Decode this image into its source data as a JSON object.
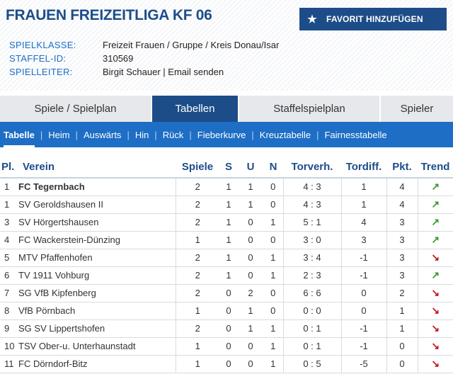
{
  "header": {
    "title": "FRAUEN FREIZEITLIGA KF 06",
    "favorite_label": "FAVORIT HINZUFÜGEN",
    "info": [
      {
        "key": "SPIELKLASSE:",
        "value": "Freizeit Frauen / Gruppe / Kreis Donau/Isar"
      },
      {
        "key": "STAFFEL-ID:",
        "value": "310569"
      },
      {
        "key": "SPIELLEITER:",
        "value": "Birgit Schauer",
        "sep": "|",
        "link": "Email senden"
      }
    ]
  },
  "tabs": [
    {
      "label": "Spiele / Spielplan",
      "active": false
    },
    {
      "label": "Tabellen",
      "active": true
    },
    {
      "label": "Staffelspielplan",
      "active": false
    },
    {
      "label": "Spieler",
      "active": false
    }
  ],
  "subnav": [
    {
      "label": "Tabelle",
      "active": true
    },
    {
      "label": "Heim"
    },
    {
      "label": "Auswärts"
    },
    {
      "label": "Hin"
    },
    {
      "label": "Rück"
    },
    {
      "label": "Fieberkurve"
    },
    {
      "label": "Kreuztabelle"
    },
    {
      "label": "Fairnesstabelle"
    }
  ],
  "table": {
    "headers": [
      "Pl.",
      "Verein",
      "Spiele",
      "S",
      "U",
      "N",
      "Torverh.",
      "Tordiff.",
      "Pkt.",
      "Trend"
    ],
    "rows": [
      {
        "pl": "1",
        "team": "FC Tegernbach",
        "spiele": "2",
        "s": "1",
        "u": "1",
        "n": "0",
        "tore": "4 : 3",
        "diff": "1",
        "pkt": "4",
        "trend": "up",
        "highlight": true
      },
      {
        "pl": "1",
        "team": "SV Geroldshausen II",
        "spiele": "2",
        "s": "1",
        "u": "1",
        "n": "0",
        "tore": "4 : 3",
        "diff": "1",
        "pkt": "4",
        "trend": "up"
      },
      {
        "pl": "3",
        "team": "SV Hörgertshausen",
        "spiele": "2",
        "s": "1",
        "u": "0",
        "n": "1",
        "tore": "5 : 1",
        "diff": "4",
        "pkt": "3",
        "trend": "up"
      },
      {
        "pl": "4",
        "team": "FC Wackerstein-Dünzing",
        "spiele": "1",
        "s": "1",
        "u": "0",
        "n": "0",
        "tore": "3 : 0",
        "diff": "3",
        "pkt": "3",
        "trend": "up"
      },
      {
        "pl": "5",
        "team": "MTV Pfaffenhofen",
        "spiele": "2",
        "s": "1",
        "u": "0",
        "n": "1",
        "tore": "3 : 4",
        "diff": "-1",
        "pkt": "3",
        "trend": "down"
      },
      {
        "pl": "6",
        "team": "TV 1911 Vohburg",
        "spiele": "2",
        "s": "1",
        "u": "0",
        "n": "1",
        "tore": "2 : 3",
        "diff": "-1",
        "pkt": "3",
        "trend": "up"
      },
      {
        "pl": "7",
        "team": "SG VfB Kipfenberg",
        "spiele": "2",
        "s": "0",
        "u": "2",
        "n": "0",
        "tore": "6 : 6",
        "diff": "0",
        "pkt": "2",
        "trend": "down"
      },
      {
        "pl": "8",
        "team": "VfB Pörnbach",
        "spiele": "1",
        "s": "0",
        "u": "1",
        "n": "0",
        "tore": "0 : 0",
        "diff": "0",
        "pkt": "1",
        "trend": "down"
      },
      {
        "pl": "9",
        "team": "SG SV Lippertshofen",
        "spiele": "2",
        "s": "0",
        "u": "1",
        "n": "1",
        "tore": "0 : 1",
        "diff": "-1",
        "pkt": "1",
        "trend": "down"
      },
      {
        "pl": "10",
        "team": "TSV Ober-u. Unterhaunstadt",
        "spiele": "1",
        "s": "0",
        "u": "0",
        "n": "1",
        "tore": "0 : 1",
        "diff": "-1",
        "pkt": "0",
        "trend": "down"
      },
      {
        "pl": "11",
        "team": "FC Dörndorf-Bitz",
        "spiele": "1",
        "s": "0",
        "u": "0",
        "n": "1",
        "tore": "0 : 5",
        "diff": "-5",
        "pkt": "0",
        "trend": "down"
      }
    ]
  },
  "icons": {
    "star": "star-icon",
    "trend_up": "trend-up-icon",
    "trend_down": "trend-down-icon"
  },
  "colors": {
    "brand_dark": "#1d4d89",
    "brand": "#1d6ec4",
    "trend_up": "#3a9a2c",
    "trend_down": "#c2191b"
  }
}
